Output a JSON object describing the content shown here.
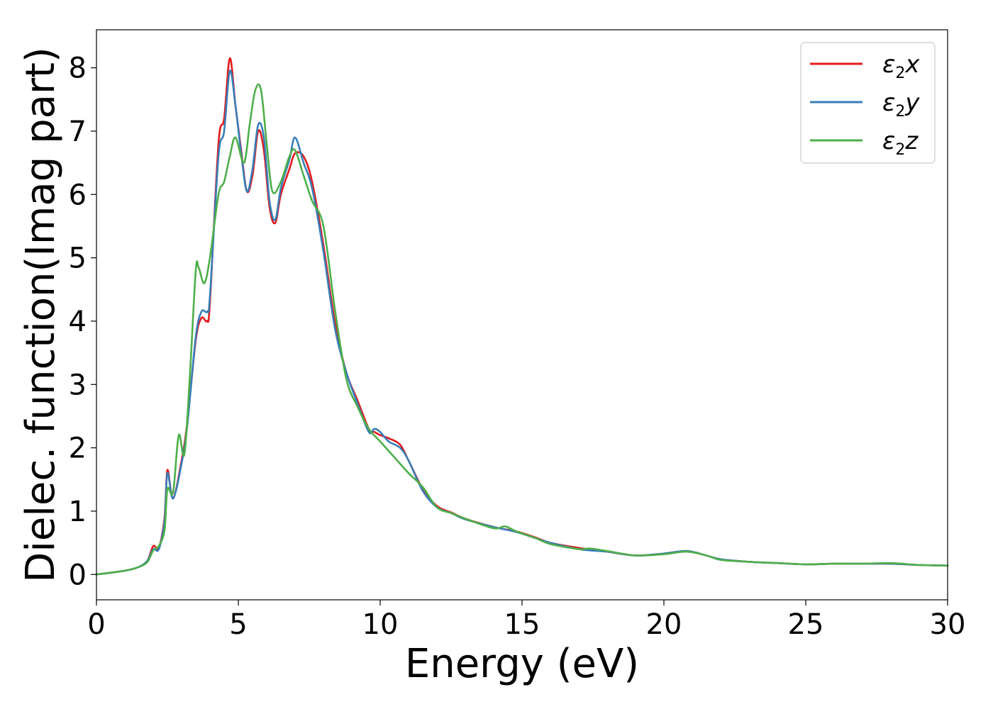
{
  "chart_data": {
    "type": "line",
    "title": "",
    "xlabel": "Energy (eV)",
    "ylabel": "Dielec. function(Imag part)",
    "xlim": [
      0,
      30
    ],
    "ylim": [
      -0.4,
      8.6
    ],
    "xticks": [
      0,
      5,
      10,
      15,
      20,
      25,
      30
    ],
    "yticks": [
      0,
      1,
      2,
      3,
      4,
      5,
      6,
      7,
      8
    ],
    "grid": false,
    "legend_position": "top-right",
    "series": [
      {
        "name": "ε2x",
        "legend": {
          "base": "ε",
          "sub": "2",
          "tail": "x"
        },
        "color": "#e41a1c",
        "x": [
          0,
          1,
          1.5,
          1.8,
          2.0,
          2.2,
          2.4,
          2.5,
          2.7,
          3.0,
          3.2,
          3.5,
          3.7,
          3.9,
          4.0,
          4.3,
          4.5,
          4.7,
          4.9,
          5.1,
          5.3,
          5.5,
          5.7,
          5.9,
          6.1,
          6.3,
          6.5,
          6.8,
          7.0,
          7.3,
          7.6,
          8.0,
          8.4,
          8.8,
          9.2,
          9.6,
          9.8,
          10.0,
          10.3,
          10.7,
          11.0,
          11.5,
          12.0,
          12.5,
          13.0,
          14.0,
          14.8,
          15.5,
          16.0,
          17.0,
          18.0,
          19.0,
          20.0,
          20.8,
          21.5,
          22.0,
          23.0,
          24.0,
          25.0,
          26.0,
          27.0,
          28.0,
          29.0,
          30.0
        ],
        "y": [
          0.0,
          0.06,
          0.12,
          0.22,
          0.45,
          0.42,
          0.9,
          1.65,
          1.2,
          1.8,
          2.4,
          3.7,
          4.05,
          4.0,
          4.3,
          6.8,
          7.2,
          8.15,
          7.4,
          6.7,
          6.05,
          6.3,
          7.0,
          6.7,
          5.8,
          5.55,
          6.0,
          6.4,
          6.65,
          6.6,
          6.2,
          5.2,
          4.0,
          3.2,
          2.75,
          2.3,
          2.25,
          2.2,
          2.15,
          2.05,
          1.8,
          1.35,
          1.08,
          0.98,
          0.88,
          0.75,
          0.68,
          0.58,
          0.5,
          0.42,
          0.36,
          0.3,
          0.33,
          0.37,
          0.3,
          0.24,
          0.2,
          0.18,
          0.16,
          0.17,
          0.17,
          0.17,
          0.15,
          0.14
        ]
      },
      {
        "name": "ε2y",
        "legend": {
          "base": "ε",
          "sub": "2",
          "tail": "y"
        },
        "color": "#377eb8",
        "x": [
          0,
          1,
          1.5,
          1.8,
          2.0,
          2.2,
          2.4,
          2.5,
          2.7,
          3.0,
          3.2,
          3.5,
          3.7,
          3.9,
          4.0,
          4.3,
          4.5,
          4.7,
          4.9,
          5.1,
          5.3,
          5.5,
          5.7,
          5.9,
          6.1,
          6.3,
          6.5,
          6.8,
          7.0,
          7.3,
          7.6,
          8.0,
          8.4,
          8.8,
          9.2,
          9.6,
          9.8,
          10.0,
          10.3,
          10.7,
          11.0,
          11.5,
          12.0,
          12.5,
          13.0,
          14.0,
          14.8,
          15.5,
          16.0,
          17.0,
          18.0,
          19.0,
          20.0,
          20.8,
          21.5,
          22.0,
          23.0,
          24.0,
          25.0,
          26.0,
          27.0,
          28.0,
          29.0,
          30.0
        ],
        "y": [
          0.0,
          0.06,
          0.12,
          0.22,
          0.4,
          0.4,
          0.85,
          1.6,
          1.2,
          1.75,
          2.35,
          3.75,
          4.15,
          4.15,
          4.4,
          6.6,
          7.0,
          7.95,
          7.4,
          6.65,
          6.05,
          6.4,
          7.1,
          6.9,
          5.9,
          5.6,
          6.1,
          6.55,
          6.9,
          6.5,
          6.1,
          5.1,
          3.9,
          3.2,
          2.7,
          2.25,
          2.3,
          2.25,
          2.1,
          2.0,
          1.8,
          1.32,
          1.06,
          0.97,
          0.87,
          0.75,
          0.67,
          0.57,
          0.5,
          0.4,
          0.36,
          0.3,
          0.33,
          0.37,
          0.3,
          0.24,
          0.2,
          0.18,
          0.16,
          0.17,
          0.17,
          0.17,
          0.15,
          0.14
        ]
      },
      {
        "name": "ε2z",
        "legend": {
          "base": "ε",
          "sub": "2",
          "tail": "z"
        },
        "color": "#4daf4a",
        "x": [
          0,
          1,
          1.5,
          1.8,
          2.0,
          2.2,
          2.4,
          2.5,
          2.7,
          2.9,
          3.1,
          3.3,
          3.5,
          3.6,
          3.8,
          4.0,
          4.3,
          4.5,
          4.7,
          4.9,
          5.2,
          5.4,
          5.6,
          5.8,
          6.0,
          6.2,
          6.5,
          6.8,
          7.0,
          7.3,
          7.6,
          8.0,
          8.4,
          8.8,
          9.2,
          9.6,
          10.0,
          10.5,
          11.0,
          11.5,
          12.0,
          12.5,
          13.0,
          14.0,
          14.4,
          14.8,
          15.5,
          16.0,
          17.0,
          17.4,
          18.0,
          19.0,
          20.0,
          20.8,
          21.5,
          22.0,
          23.0,
          24.0,
          25.0,
          26.0,
          27.0,
          28.0,
          29.0,
          30.0
        ],
        "y": [
          0.0,
          0.06,
          0.12,
          0.2,
          0.38,
          0.45,
          0.7,
          1.35,
          1.3,
          2.2,
          1.9,
          3.2,
          4.8,
          4.85,
          4.6,
          5.0,
          6.0,
          6.2,
          6.6,
          6.9,
          6.5,
          7.1,
          7.65,
          7.65,
          6.8,
          6.05,
          6.2,
          6.6,
          6.7,
          6.3,
          5.9,
          5.5,
          4.2,
          3.1,
          2.65,
          2.3,
          2.1,
          1.85,
          1.6,
          1.38,
          1.06,
          0.97,
          0.88,
          0.73,
          0.76,
          0.68,
          0.57,
          0.48,
          0.4,
          0.41,
          0.37,
          0.3,
          0.32,
          0.36,
          0.3,
          0.23,
          0.2,
          0.18,
          0.16,
          0.17,
          0.17,
          0.18,
          0.15,
          0.14
        ]
      }
    ]
  }
}
